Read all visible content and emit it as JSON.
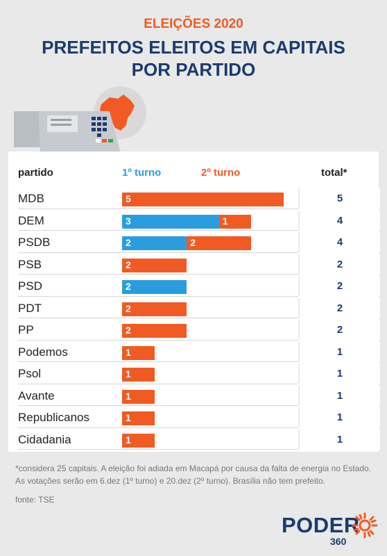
{
  "header": {
    "supertitle": "ELEIÇÕES 2020",
    "title_line1": "PREFEITOS ELEITOS EM CAPITAIS",
    "title_line2": "POR PARTIDO"
  },
  "columns": {
    "party": "partido",
    "first_round": "1º turno",
    "second_round": "2º turno",
    "total": "total*"
  },
  "colors": {
    "first_round": "#2a9de0",
    "second_round": "#f15a22",
    "navy": "#1b3b6f"
  },
  "chart_data": {
    "type": "bar",
    "orientation": "horizontal",
    "stacked": true,
    "categories": [
      "MDB",
      "DEM",
      "PSDB",
      "PSB",
      "PSD",
      "PDT",
      "PP",
      "Podemos",
      "Psol",
      "Avante",
      "Republicanos",
      "Cidadania"
    ],
    "series": [
      {
        "name": "1º turno",
        "values": [
          0,
          3,
          2,
          0,
          2,
          0,
          0,
          0,
          0,
          0,
          0,
          0
        ]
      },
      {
        "name": "2º turno",
        "values": [
          5,
          1,
          2,
          2,
          0,
          2,
          2,
          1,
          1,
          1,
          1,
          1
        ]
      }
    ],
    "totals": [
      5,
      4,
      4,
      2,
      2,
      2,
      2,
      1,
      1,
      1,
      1,
      1
    ],
    "xlim": [
      0,
      5
    ]
  },
  "footnote": "*considera 25 capitais. A eleição foi adiada em Macapá por causa da falta de energia no Estado. As votações serão em 6.dez (1º turno) e 20.dez (2º turno). Brasília não tem prefeito.",
  "source": "fonte: TSE",
  "brand": {
    "name": "PODER",
    "sub": "360"
  }
}
